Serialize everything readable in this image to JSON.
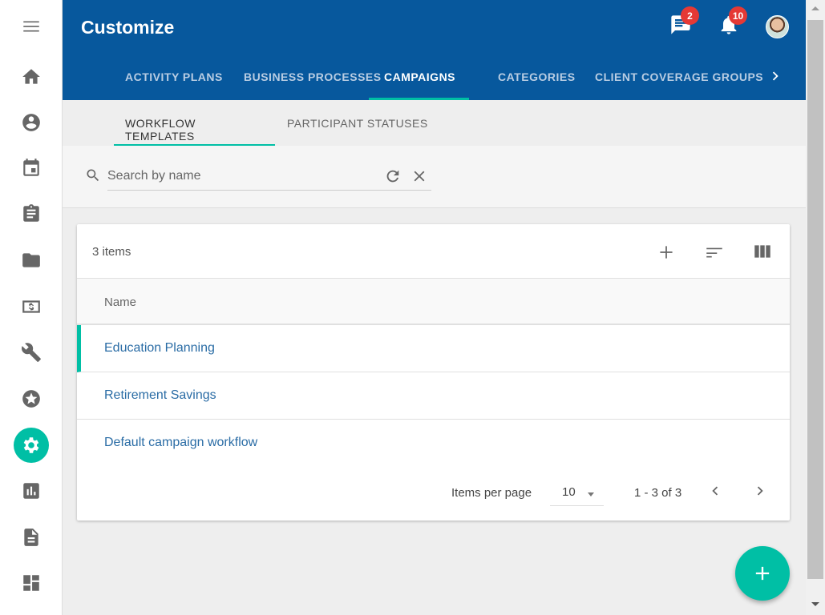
{
  "app": {
    "title": "Customize"
  },
  "sidebar": {
    "items": [
      {
        "icon": "menu-icon"
      },
      {
        "icon": "home-icon"
      },
      {
        "icon": "account-circle-icon"
      },
      {
        "icon": "calendar-icon"
      },
      {
        "icon": "assignment-icon"
      },
      {
        "icon": "folder-icon"
      },
      {
        "icon": "money-icon"
      },
      {
        "icon": "wrench-icon"
      },
      {
        "icon": "star-icon"
      },
      {
        "icon": "settings-icon",
        "active": true
      },
      {
        "icon": "bar-chart-icon"
      },
      {
        "icon": "document-icon"
      },
      {
        "icon": "dashboard-icon"
      }
    ]
  },
  "header": {
    "messages_badge": "2",
    "notifications_badge": "10"
  },
  "tabs": [
    {
      "label": "ACTIVITY PLANS"
    },
    {
      "label": "BUSINESS PROCESSES"
    },
    {
      "label": "CAMPAIGNS",
      "active": true
    },
    {
      "label": "CATEGORIES"
    },
    {
      "label": "CLIENT COVERAGE GROUPS"
    }
  ],
  "subtabs": [
    {
      "label": "WORKFLOW TEMPLATES",
      "active": true
    },
    {
      "label": "PARTICIPANT STATUSES"
    }
  ],
  "search": {
    "placeholder": "Search by name",
    "value": ""
  },
  "table": {
    "count": "3 items",
    "column": "Name",
    "rows": [
      "Education Planning",
      "Retirement Savings",
      "Default campaign workflow"
    ]
  },
  "pager": {
    "label": "Items per page",
    "per_page": "10",
    "range": "1 - 3 of 3"
  },
  "colors": {
    "header": "#07589d",
    "accent": "#00bfa5",
    "link": "#2a6ca5",
    "badge": "#e53935"
  }
}
